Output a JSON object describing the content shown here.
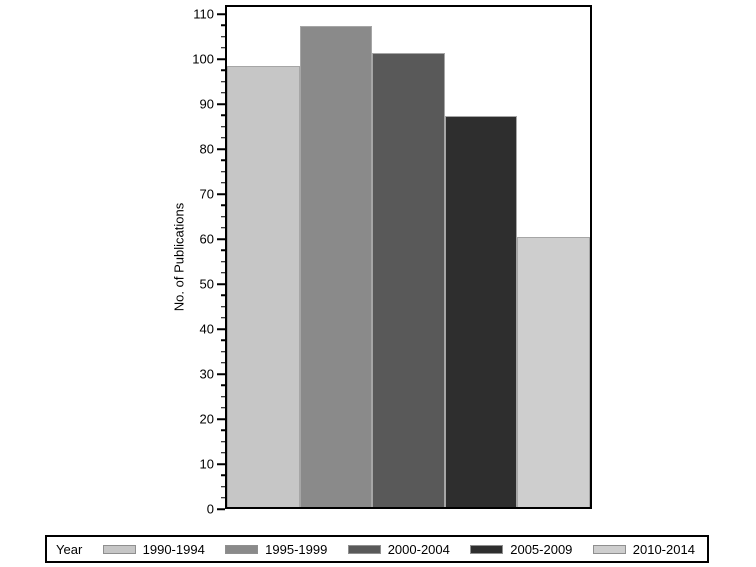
{
  "chart_data": {
    "type": "bar",
    "title": "",
    "xlabel": "",
    "ylabel": "No. of Publications",
    "categories": [
      "1990-1994",
      "1995-1999",
      "2000-2004",
      "2005-2009",
      "2010-2014"
    ],
    "values": [
      98,
      107,
      101,
      87,
      60
    ],
    "bar_colors": [
      "#c6c6c6",
      "#8a8a8a",
      "#595959",
      "#2e2e2e",
      "#cecece"
    ],
    "bar_outline_color": "#a6a6a6",
    "ylim": [
      0,
      112
    ],
    "yticks": [
      0,
      10,
      20,
      30,
      40,
      50,
      60,
      70,
      80,
      90,
      100,
      110
    ],
    "minor_tick_step": 2.5,
    "grid": false,
    "legend_position": "bottom",
    "legend_title": "Year"
  },
  "colors": {
    "background": "#ffffff",
    "frame": "#000000",
    "text": "#000000"
  }
}
